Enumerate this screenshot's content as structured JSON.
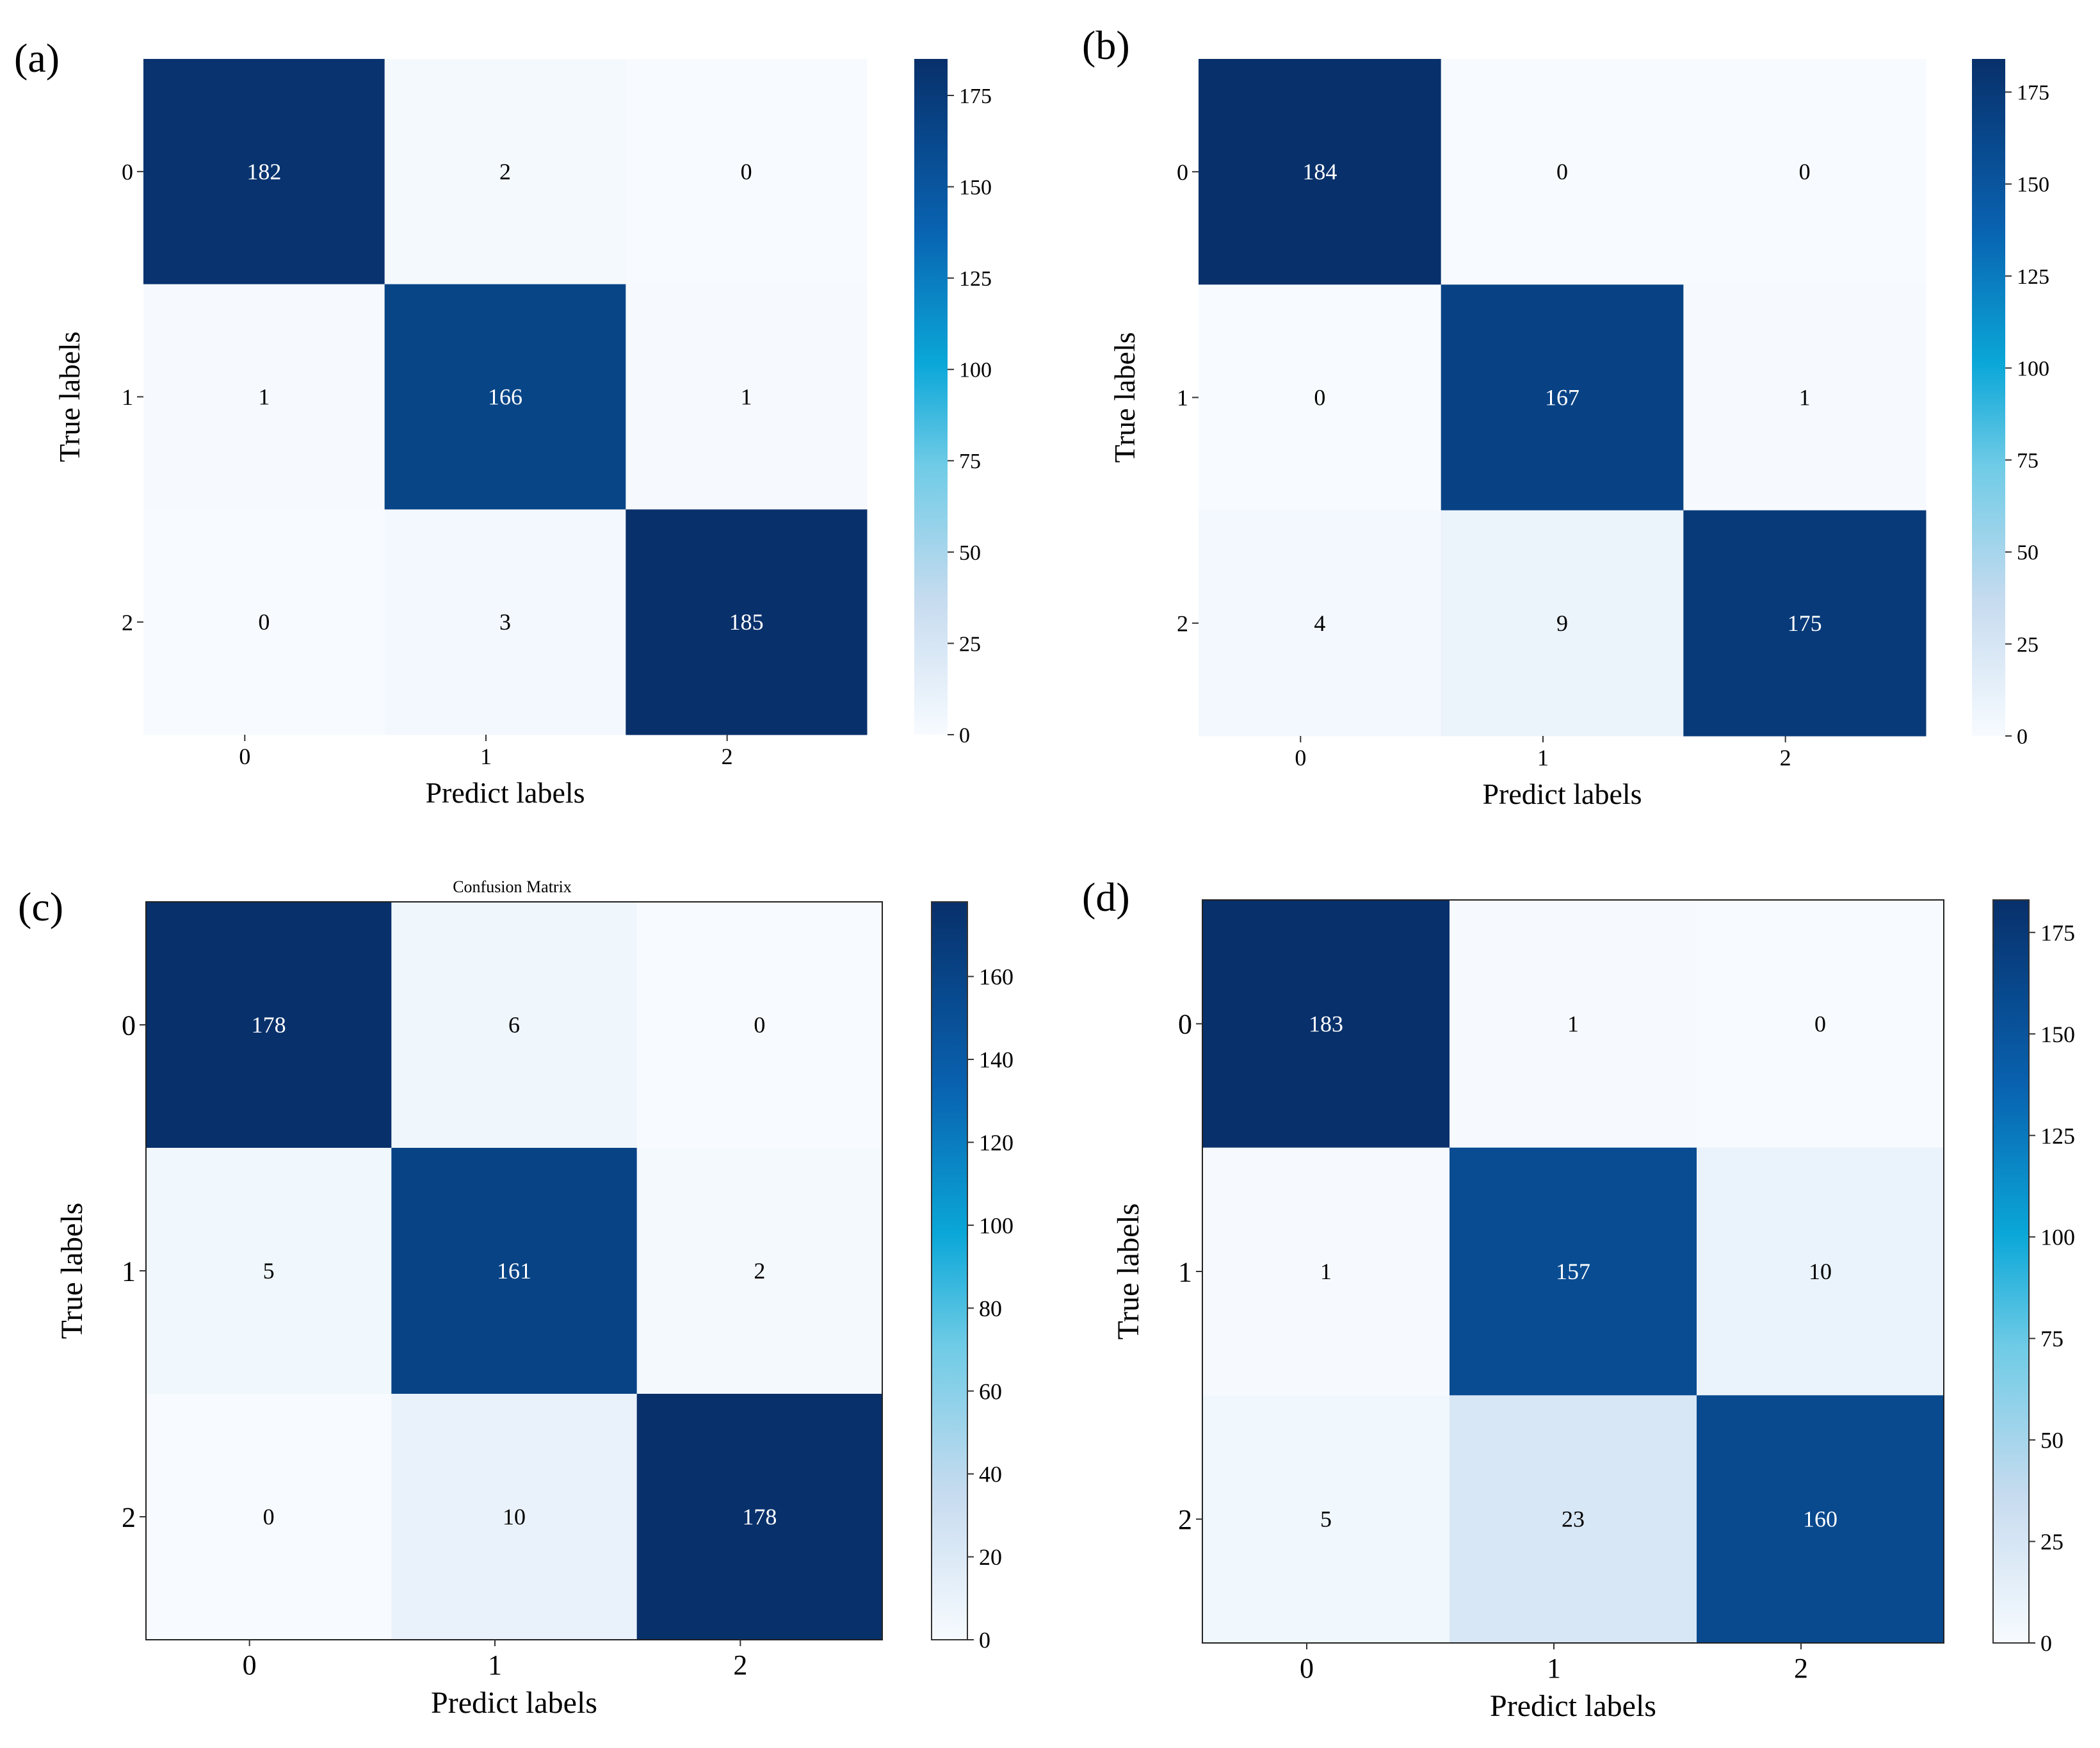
{
  "chart_data": [
    {
      "type": "heatmap",
      "panel_label": "(a)",
      "title": "",
      "xlabel": "Predict labels",
      "ylabel": "True labels",
      "x_categories": [
        "0",
        "1",
        "2"
      ],
      "y_categories": [
        "0",
        "1",
        "2"
      ],
      "values": [
        [
          182,
          2,
          0
        ],
        [
          1,
          166,
          1
        ],
        [
          0,
          3,
          185
        ]
      ],
      "colorbar": {
        "min": 0,
        "max": 185,
        "ticks": [
          0,
          25,
          50,
          75,
          100,
          125,
          150,
          175
        ]
      },
      "colormap": "Blues"
    },
    {
      "type": "heatmap",
      "panel_label": "(b)",
      "title": "",
      "xlabel": "Predict labels",
      "ylabel": "True labels",
      "x_categories": [
        "0",
        "1",
        "2"
      ],
      "y_categories": [
        "0",
        "1",
        "2"
      ],
      "values": [
        [
          184,
          0,
          0
        ],
        [
          0,
          167,
          1
        ],
        [
          4,
          9,
          175
        ]
      ],
      "colorbar": {
        "min": 0,
        "max": 184,
        "ticks": [
          0,
          25,
          50,
          75,
          100,
          125,
          150,
          175
        ]
      },
      "colormap": "Blues"
    },
    {
      "type": "heatmap",
      "panel_label": "(c)",
      "title": "Confusion Matrix",
      "xlabel": "Predict labels",
      "ylabel": "True labels",
      "x_categories": [
        "0",
        "1",
        "2"
      ],
      "y_categories": [
        "0",
        "1",
        "2"
      ],
      "values": [
        [
          178,
          6,
          0
        ],
        [
          5,
          161,
          2
        ],
        [
          0,
          10,
          178
        ]
      ],
      "colorbar": {
        "min": 0,
        "max": 178,
        "ticks": [
          0,
          20,
          40,
          60,
          80,
          100,
          120,
          140,
          160
        ]
      },
      "colormap": "Blues"
    },
    {
      "type": "heatmap",
      "panel_label": "(d)",
      "title": "",
      "xlabel": "Predict labels",
      "ylabel": "True labels",
      "x_categories": [
        "0",
        "1",
        "2"
      ],
      "y_categories": [
        "0",
        "1",
        "2"
      ],
      "values": [
        [
          183,
          1,
          0
        ],
        [
          1,
          157,
          10
        ],
        [
          5,
          23,
          160
        ]
      ],
      "colorbar": {
        "min": 0,
        "max": 183,
        "ticks": [
          0,
          25,
          50,
          75,
          100,
          125,
          150,
          175
        ]
      },
      "colormap": "Blues"
    }
  ]
}
